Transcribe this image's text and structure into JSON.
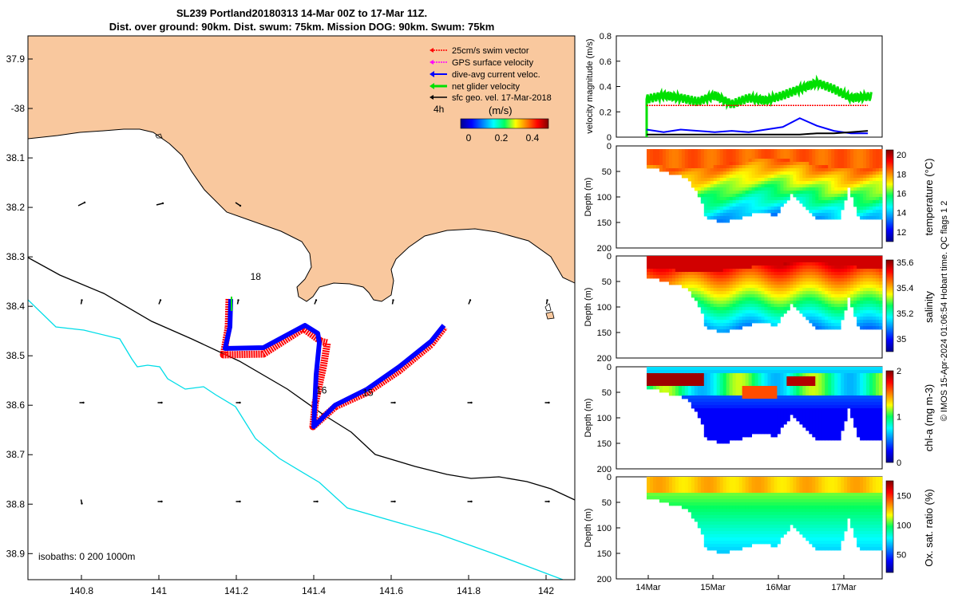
{
  "header": {
    "line1": "SL239 Portland20180313 14-Mar 00Z to 17-Mar 11Z.",
    "line2": "Dist. over ground: 90km. Dist. swum: 75km. Mission DOG: 90km. Swum: 75km"
  },
  "colors": {
    "land": "#f9c89e",
    "swim": "#ff0000",
    "gps": "#ff00ff",
    "diveavg": "#0000ff",
    "net": "#00e000",
    "geo": "#000000",
    "isobath1000": "#00dde8"
  },
  "map": {
    "lon_ticks": [
      "140.8",
      "141",
      "141.2",
      "141.4",
      "141.6",
      "141.8",
      "142"
    ],
    "lat_ticks": [
      "37.9",
      "-38",
      "38.1",
      "38.2",
      "38.3",
      "38.4",
      "38.5",
      "38.6",
      "38.7",
      "38.8",
      "38.9"
    ],
    "legend": [
      "25cm/s swim vector",
      "GPS surface velocity",
      "dive-avg current veloc.",
      "net glider velocity",
      "sfc geo. vel. 17-Mar-2018"
    ],
    "time_marker": "4h",
    "colorbar_unit": "(m/s)",
    "colorbar_ticks": [
      "0",
      "0.2",
      "0.4"
    ],
    "day_labels": [
      {
        "text": "18",
        "lon": 141.25,
        "lat": -38.34
      },
      {
        "text": "16",
        "lon": 141.42,
        "lat": -38.57
      },
      {
        "text": "15",
        "lon": 141.54,
        "lat": -38.575
      }
    ],
    "isobaths_label": "isobaths: 0   200  1000m"
  },
  "chart_data": [
    {
      "type": "line",
      "title": "velocity magnitude (m/s)",
      "ylabel": "velocity magnitude (m/s)",
      "ylim": [
        0,
        0.8
      ],
      "yticks": [
        "0",
        "0.2",
        "0.4",
        "0.6",
        "0.8"
      ],
      "x_days": [
        0,
        0.25,
        0.5,
        0.75,
        1.0,
        1.25,
        1.5,
        1.75,
        2.0,
        2.25,
        2.5,
        2.75,
        3.0,
        3.25
      ],
      "series": [
        {
          "name": "net glider velocity",
          "values": [
            0.3,
            0.33,
            0.31,
            0.28,
            0.33,
            0.26,
            0.31,
            0.29,
            0.33,
            0.38,
            0.43,
            0.38,
            0.31,
            0.32
          ]
        },
        {
          "name": "swim vector",
          "values": [
            0.25,
            0.25,
            0.25,
            0.25,
            0.25,
            0.25,
            0.25,
            0.25,
            0.25,
            0.25,
            0.25,
            0.25,
            0.25,
            0.25
          ]
        },
        {
          "name": "dive-avg current veloc.",
          "values": [
            0.06,
            0.04,
            0.06,
            0.05,
            0.04,
            0.05,
            0.04,
            0.06,
            0.08,
            0.15,
            0.09,
            0.05,
            0.03,
            0.03
          ]
        },
        {
          "name": "sfc geo. vel.",
          "values": [
            0.02,
            0.02,
            0.02,
            0.02,
            0.02,
            0.02,
            0.02,
            0.02,
            0.02,
            0.02,
            0.03,
            0.03,
            0.04,
            0.05
          ]
        }
      ]
    },
    {
      "type": "heatmap",
      "ylabel": "Depth (m)",
      "colorbar_label": "temperature (°C)",
      "colorbar_ticks": [
        "12",
        "14",
        "16",
        "18",
        "20"
      ],
      "clim": [
        11,
        20.5
      ],
      "depth_ticks": [
        "0",
        "50",
        "100",
        "150",
        "200"
      ]
    },
    {
      "type": "heatmap",
      "ylabel": "Depth (m)",
      "colorbar_label": "salinity",
      "colorbar_ticks": [
        "35",
        "35.2",
        "35.4",
        "35.6"
      ],
      "clim": [
        34.9,
        35.62
      ],
      "depth_ticks": [
        "0",
        "50",
        "100",
        "150",
        "200"
      ]
    },
    {
      "type": "heatmap",
      "ylabel": "Depth (m)",
      "colorbar_label": "chl-a (mg m-3)",
      "colorbar_ticks": [
        "0",
        "1",
        "2"
      ],
      "clim": [
        0,
        2
      ],
      "depth_ticks": [
        "0",
        "50",
        "100",
        "150",
        "200"
      ]
    },
    {
      "type": "heatmap",
      "ylabel": "Depth (m)",
      "colorbar_label": "Ox. sat. ratio (%)",
      "colorbar_ticks": [
        "50",
        "100",
        "150"
      ],
      "clim": [
        20,
        175
      ],
      "depth_ticks": [
        "0",
        "50",
        "100",
        "150",
        "200"
      ],
      "x_ticks": [
        "14Mar",
        "15Mar",
        "16Mar",
        "17Mar"
      ]
    }
  ],
  "credit": "© IMOS 15-Apr-2024 01:06:54 Hobart time. QC flags 1  2"
}
